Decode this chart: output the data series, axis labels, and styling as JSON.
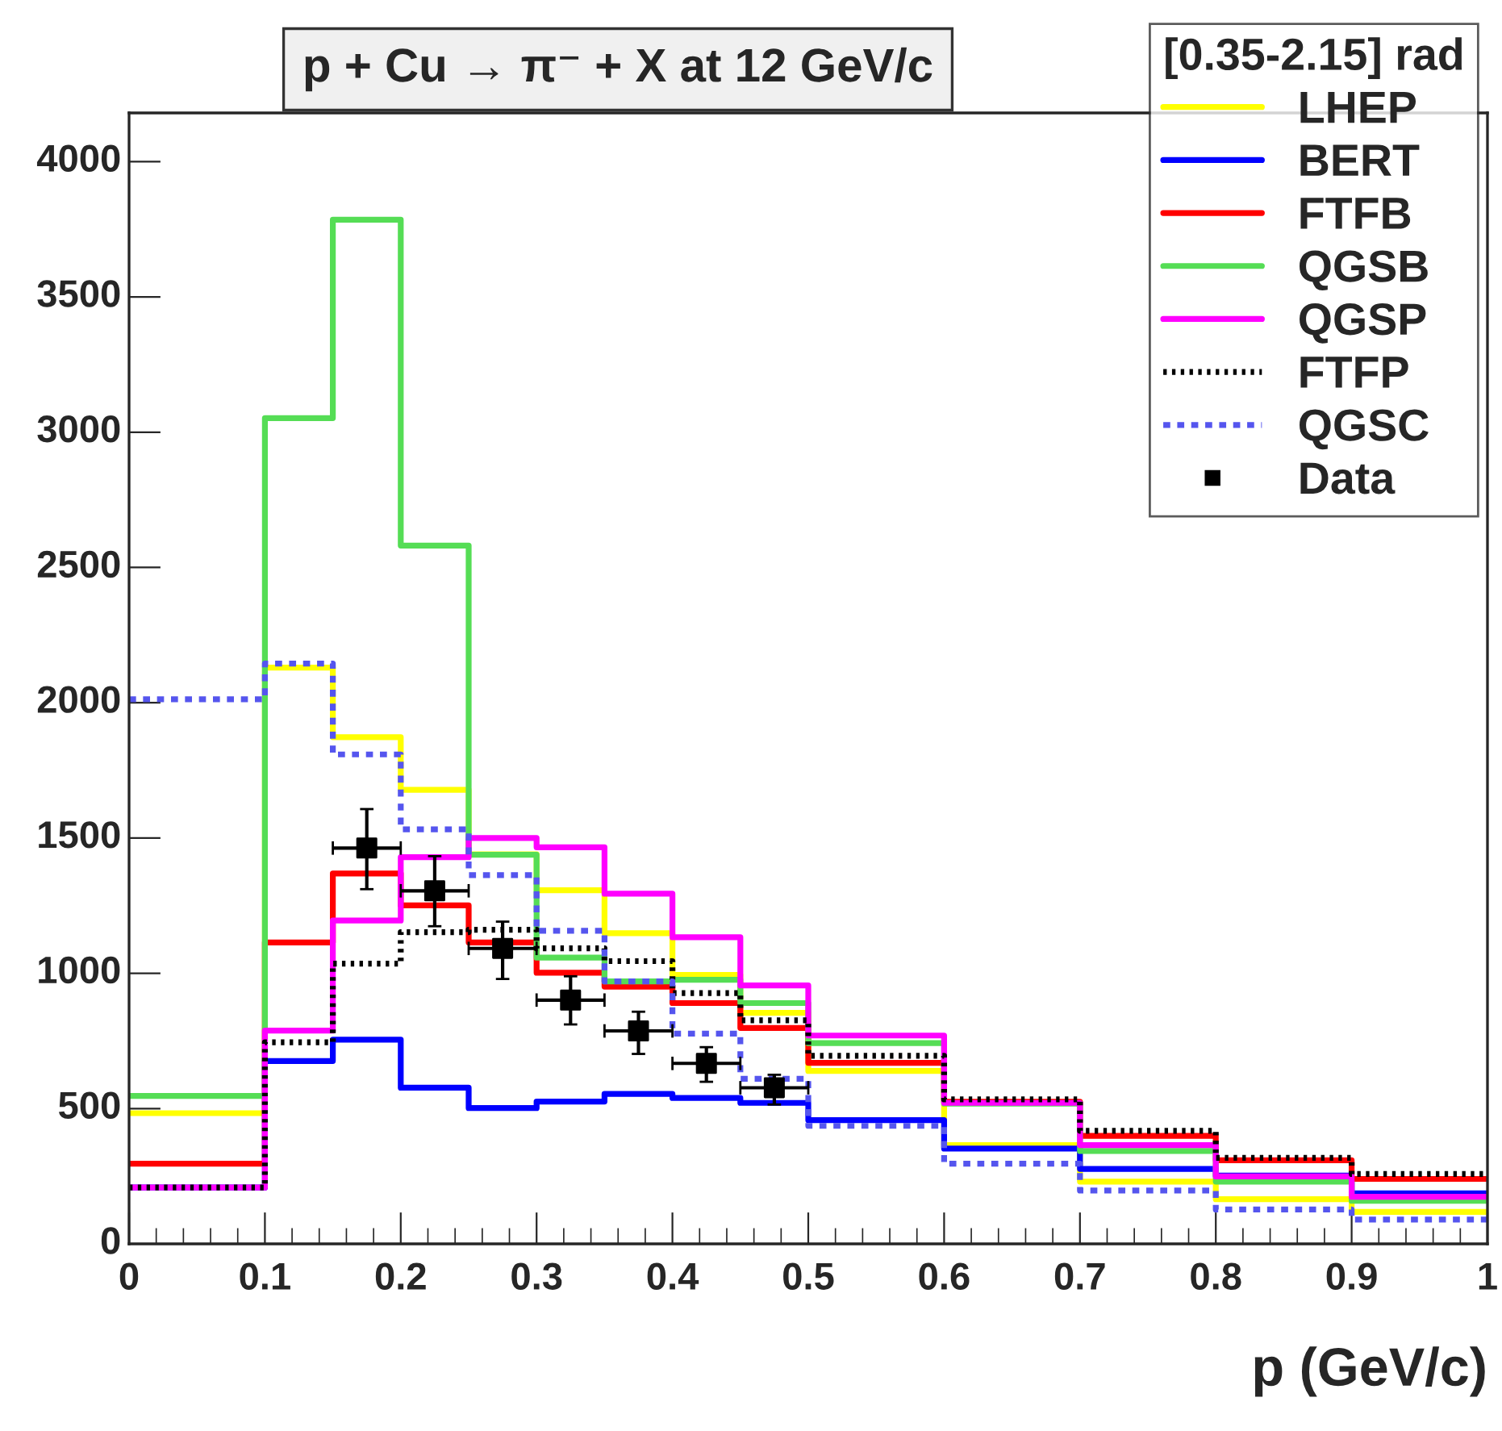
{
  "chart_data": {
    "type": "histogram",
    "title": "p + Cu → π⁻ + X at 12 GeV/c",
    "xlabel": "p (GeV/c)",
    "legend_title": "[0.35-2.15] rad",
    "bins": [
      0,
      0.1,
      0.15,
      0.2,
      0.25,
      0.3,
      0.35,
      0.4,
      0.45,
      0.5,
      0.6,
      0.7,
      0.8,
      0.9,
      1.0
    ],
    "series": [
      {
        "name": "LHEP",
        "color": "#ffff00",
        "line_style": "solid",
        "values": [
          483,
          2130,
          1873,
          1678,
          1440,
          1307,
          1148,
          994,
          854,
          639,
          365,
          230,
          165,
          118
        ]
      },
      {
        "name": "BERT",
        "color": "#0000ff",
        "line_style": "solid",
        "values": [
          208,
          676,
          755,
          577,
          502,
          526,
          554,
          539,
          521,
          457,
          352,
          277,
          252,
          187
        ]
      },
      {
        "name": "FTFB",
        "color": "#ff0000",
        "line_style": "solid",
        "values": [
          296,
          1114,
          1369,
          1251,
          1114,
          1002,
          951,
          890,
          798,
          669,
          525,
          399,
          309,
          240
        ]
      },
      {
        "name": "QGSB",
        "color": "#55dd55",
        "line_style": "solid",
        "values": [
          547,
          3052,
          3785,
          2581,
          1438,
          1058,
          970,
          976,
          890,
          742,
          518,
          343,
          230,
          159
        ]
      },
      {
        "name": "QGSP",
        "color": "#ff00ff",
        "line_style": "solid",
        "values": [
          208,
          788,
          1195,
          1429,
          1500,
          1466,
          1294,
          1133,
          955,
          770,
          521,
          365,
          249,
          174
        ]
      },
      {
        "name": "FTFP",
        "color": "#000000",
        "line_style": "dotted",
        "values": [
          208,
          745,
          1036,
          1152,
          1161,
          1092,
          1045,
          927,
          826,
          695,
          534,
          418,
          318,
          258
        ]
      },
      {
        "name": "QGSC",
        "color": "#5555ee",
        "line_style": "dashed",
        "values": [
          2013,
          2145,
          1809,
          1532,
          1363,
          1157,
          970,
          777,
          610,
          436,
          296,
          197,
          127,
          90
        ]
      },
      {
        "name": "Data",
        "type": "scatter",
        "color": "#000000",
        "marker": "square",
        "x": [
          0.175,
          0.225,
          0.275,
          0.325,
          0.375,
          0.425,
          0.475
        ],
        "values": [
          1463,
          1305,
          1092,
          901,
          787,
          667,
          577
        ],
        "errors": [
          [
            1311,
            1607
          ],
          [
            1174,
            1433
          ],
          [
            979,
            1191
          ],
          [
            811,
            989
          ],
          [
            702,
            858
          ],
          [
            599,
            727
          ],
          [
            515,
            625
          ]
        ],
        "xerrors": [
          0.025,
          0.025,
          0.025,
          0.025,
          0.025,
          0.025,
          0.025
        ]
      }
    ],
    "xlim": [
      0,
      1
    ],
    "ylim": [
      0,
      4180
    ],
    "xticks": [
      0,
      0.1,
      0.2,
      0.3,
      0.4,
      0.5,
      0.6,
      0.7,
      0.8,
      0.9,
      1
    ],
    "yticks": [
      0,
      500,
      1000,
      1500,
      2000,
      2500,
      3000,
      3500,
      4000
    ],
    "grid": false,
    "legend": "top right"
  }
}
